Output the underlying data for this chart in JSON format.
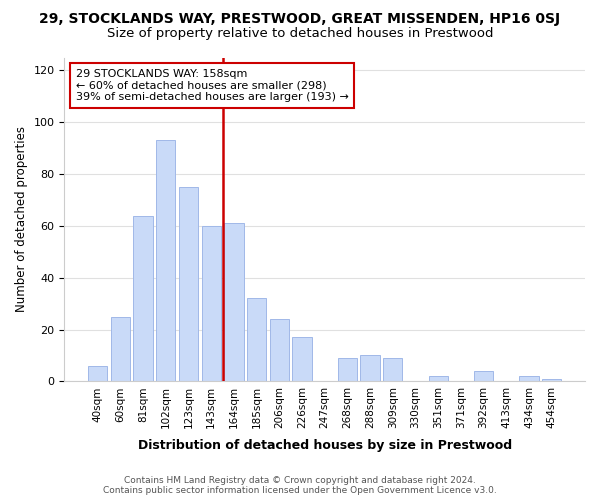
{
  "title": "29, STOCKLANDS WAY, PRESTWOOD, GREAT MISSENDEN, HP16 0SJ",
  "subtitle": "Size of property relative to detached houses in Prestwood",
  "xlabel": "Distribution of detached houses by size in Prestwood",
  "ylabel": "Number of detached properties",
  "bar_labels": [
    "40sqm",
    "60sqm",
    "81sqm",
    "102sqm",
    "123sqm",
    "143sqm",
    "164sqm",
    "185sqm",
    "206sqm",
    "226sqm",
    "247sqm",
    "268sqm",
    "288sqm",
    "309sqm",
    "330sqm",
    "351sqm",
    "371sqm",
    "392sqm",
    "413sqm",
    "434sqm",
    "454sqm"
  ],
  "bar_values": [
    6,
    25,
    64,
    93,
    75,
    60,
    61,
    32,
    24,
    17,
    0,
    9,
    10,
    9,
    0,
    2,
    0,
    4,
    0,
    2,
    1
  ],
  "bar_color": "#c9daf8",
  "bar_edge_color": "#a0b8e8",
  "vline_pos": 5.5,
  "vline_color": "#cc0000",
  "annotation_title": "29 STOCKLANDS WAY: 158sqm",
  "annotation_line1": "← 60% of detached houses are smaller (298)",
  "annotation_line2": "39% of semi-detached houses are larger (193) →",
  "annotation_box_color": "#ffffff",
  "annotation_box_edge": "#cc0000",
  "ylim": [
    0,
    125
  ],
  "yticks": [
    0,
    20,
    40,
    60,
    80,
    100,
    120
  ],
  "footer_line1": "Contains HM Land Registry data © Crown copyright and database right 2024.",
  "footer_line2": "Contains public sector information licensed under the Open Government Licence v3.0.",
  "bg_color": "#ffffff",
  "grid_color": "#e0e0e0",
  "title_fontsize": 10,
  "subtitle_fontsize": 9.5
}
